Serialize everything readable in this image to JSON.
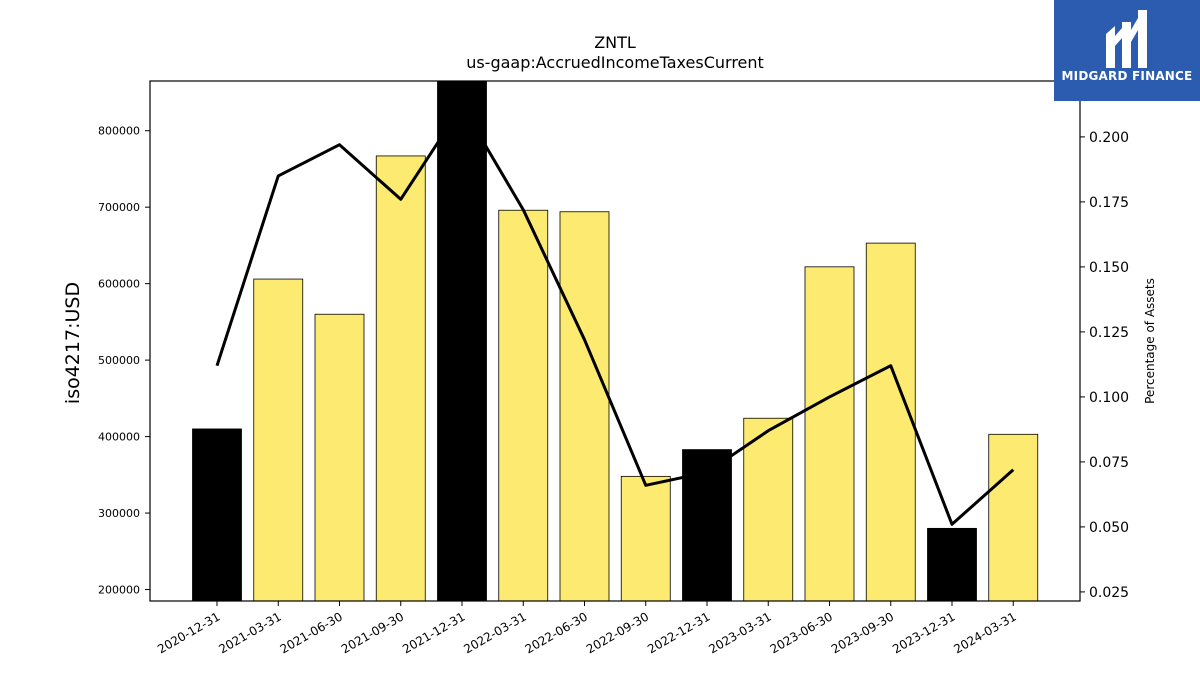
{
  "chart_data": {
    "type": "bar",
    "title": "ZNTL",
    "subtitle": "us-gaap:AccruedIncomeTaxesCurrent",
    "ylabel": "iso4217:USD",
    "y2label": "Percentage of Assets",
    "categories": [
      "2020-12-31",
      "2021-03-31",
      "2021-06-30",
      "2021-09-30",
      "2021-12-31",
      "2022-03-31",
      "2022-06-30",
      "2022-09-30",
      "2022-12-31",
      "2023-03-31",
      "2023-06-30",
      "2023-09-30",
      "2023-12-31",
      "2024-03-31"
    ],
    "series": [
      {
        "type": "bar",
        "values": [
          410000,
          606000,
          560000,
          767000,
          865000,
          696000,
          694000,
          348000,
          383000,
          424000,
          622000,
          653000,
          280000,
          403000
        ],
        "highlighted": [
          true,
          false,
          false,
          false,
          true,
          false,
          false,
          false,
          true,
          false,
          false,
          false,
          true,
          false
        ]
      },
      {
        "type": "line",
        "axis": "right",
        "values": [
          0.112,
          0.185,
          0.197,
          0.176,
          0.212,
          0.172,
          0.122,
          0.066,
          0.071,
          0.087,
          0.1,
          0.112,
          0.051,
          0.072
        ]
      }
    ],
    "ylim": [
      185000,
      865000
    ],
    "y2lim": [
      0.0215,
      0.2215
    ],
    "yticks": [
      200000,
      300000,
      400000,
      500000,
      600000,
      700000,
      800000
    ],
    "y2ticks": [
      "0.025",
      "0.050",
      "0.075",
      "0.100",
      "0.125",
      "0.150",
      "0.175",
      "0.200"
    ],
    "grid": false,
    "colors": {
      "bar": "#fdea70",
      "highlight": "#000000",
      "line": "#000000"
    }
  },
  "logo": {
    "text": "MIDGARD FINANCE",
    "icon": "midgard-logo-icon",
    "background": "#2b5cb0"
  }
}
